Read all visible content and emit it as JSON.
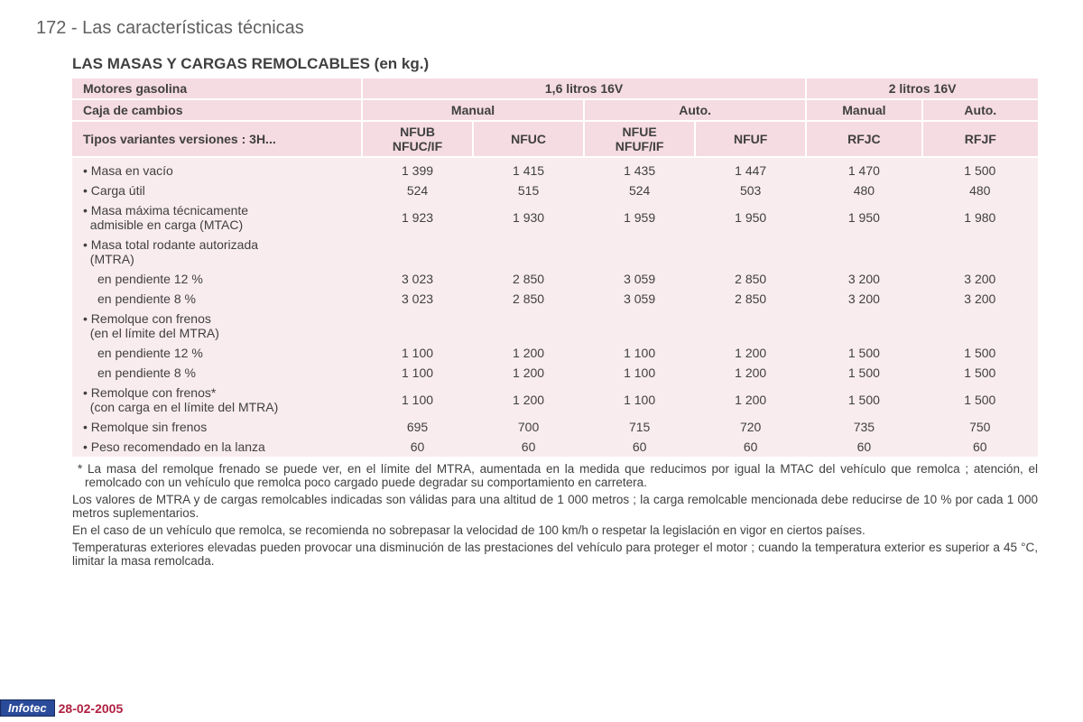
{
  "page_header": "172 - Las características técnicas",
  "title": "LAS MASAS Y CARGAS REMOLCABLES (en kg.)",
  "headers": {
    "engine_label": "Motores gasolina",
    "engine_groups": [
      "1,6 litros 16V",
      "2 litros 16V"
    ],
    "gearbox_label": "Caja de cambios",
    "gearbox_groups": [
      "Manual",
      "Auto.",
      "Manual",
      "Auto."
    ],
    "variant_label": "Tipos variantes versiones : 3H...",
    "variants": [
      "NFUB\nNFUC/IF",
      "NFUC",
      "NFUE\nNFUF/IF",
      "NFUF",
      "RFJC",
      "RFJF"
    ]
  },
  "rows": [
    {
      "label": "• Masa en vacío",
      "sub": false,
      "values": [
        "1 399",
        "1 415",
        "1 435",
        "1 447",
        "1 470",
        "1 500"
      ]
    },
    {
      "label": "• Carga útil",
      "sub": false,
      "values": [
        "524",
        "515",
        "524",
        "503",
        "480",
        "480"
      ]
    },
    {
      "label": "• Masa máxima técnicamente\n  admisible en carga (MTAC)",
      "sub": false,
      "values": [
        "1 923",
        "1 930",
        "1 959",
        "1 950",
        "1 950",
        "1 980"
      ]
    },
    {
      "label": "• Masa total rodante autorizada\n  (MTRA)",
      "sub": false,
      "values": [
        "",
        "",
        "",
        "",
        "",
        ""
      ]
    },
    {
      "label": "en pendiente 12 %",
      "sub": true,
      "values": [
        "3 023",
        "2 850",
        "3 059",
        "2 850",
        "3 200",
        "3 200"
      ]
    },
    {
      "label": "en pendiente 8 %",
      "sub": true,
      "values": [
        "3 023",
        "2 850",
        "3 059",
        "2 850",
        "3 200",
        "3 200"
      ]
    },
    {
      "label": "• Remolque con frenos\n  (en el límite del MTRA)",
      "sub": false,
      "values": [
        "",
        "",
        "",
        "",
        "",
        ""
      ]
    },
    {
      "label": "en pendiente 12 %",
      "sub": true,
      "values": [
        "1 100",
        "1 200",
        "1 100",
        "1 200",
        "1 500",
        "1 500"
      ]
    },
    {
      "label": "en pendiente 8 %",
      "sub": true,
      "values": [
        "1 100",
        "1 200",
        "1 100",
        "1 200",
        "1 500",
        "1 500"
      ]
    },
    {
      "label": "• Remolque con frenos*\n  (con carga en el límite del MTRA)",
      "sub": false,
      "values": [
        "1 100",
        "1 200",
        "1 100",
        "1 200",
        "1 500",
        "1 500"
      ]
    },
    {
      "label": "• Remolque sin frenos",
      "sub": false,
      "values": [
        "695",
        "700",
        "715",
        "720",
        "735",
        "750"
      ]
    },
    {
      "label": "• Peso recomendado en la lanza",
      "sub": false,
      "values": [
        "60",
        "60",
        "60",
        "60",
        "60",
        "60"
      ]
    }
  ],
  "notes": [
    "* La masa del remolque frenado se puede ver, en el límite del MTRA, aumentada en la medida que reducimos por igual la MTAC del vehículo que remolca ; atención, el remolcado con un vehículo que remolca poco cargado puede degradar su comportamiento en carretera.",
    "Los valores de MTRA y de cargas remolcables indicadas son válidas para una altitud de 1 000 metros ; la carga remolcable mencionada debe reducirse de 10 % por cada 1 000 metros suplementarios.",
    "En el caso de un vehículo que remolca, se recomienda no sobrepasar la velocidad de 100 km/h o respetar la legislación en vigor en ciertos países.",
    "Temperaturas exteriores elevadas pueden provocar una disminución de las prestaciones del vehículo para proteger el motor ; cuando la temperatura exterior es superior a 45 °C, limitar la masa remolcada."
  ],
  "footer": {
    "brand": "Infotec",
    "date": "28-02-2005"
  },
  "colors": {
    "header_bg": "#f5dbe2",
    "body_bg": "#f9ecef",
    "text": "#404040",
    "page_text": "#606060",
    "brand_bg": "#2a4a9a",
    "date_color": "#b02040"
  },
  "layout": {
    "col_widths_pct": [
      30,
      11.5,
      11.5,
      11.5,
      11.5,
      12,
      12
    ],
    "font_size_table": 14,
    "font_size_title": 17,
    "font_size_header": 20,
    "font_size_notes": 13.5
  }
}
